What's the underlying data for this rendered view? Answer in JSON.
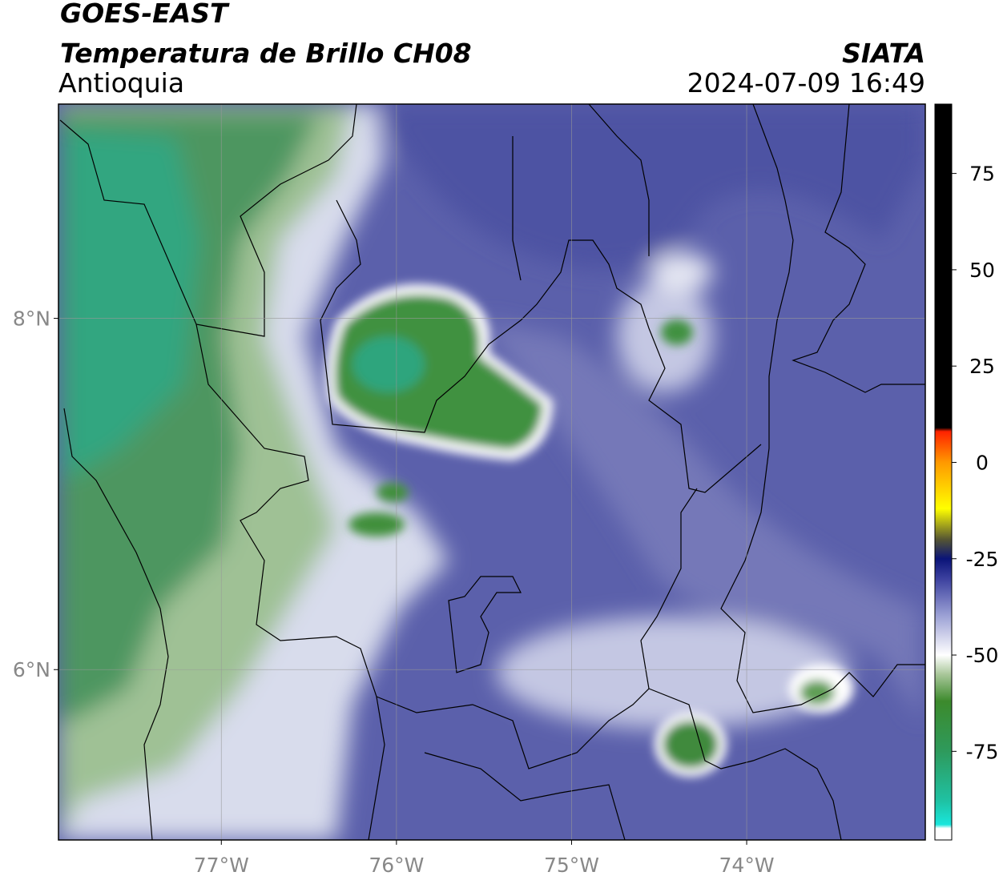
{
  "title": "GOES-EAST",
  "subtitle": "Temperatura de Brillo CH08",
  "region": "Antioquia",
  "source": "SIATA",
  "datetime": "2024-07-09 16:49",
  "map": {
    "xlim": [
      -77.93,
      -72.98
    ],
    "ylim": [
      5.03,
      9.22
    ],
    "xticks": [
      {
        "value": -77,
        "label": "77°W"
      },
      {
        "value": -76,
        "label": "76°W"
      },
      {
        "value": -75,
        "label": "75°W"
      },
      {
        "value": -74,
        "label": "74°W"
      }
    ],
    "yticks": [
      {
        "value": 8,
        "label": "8°N"
      },
      {
        "value": 6,
        "label": "6°N"
      }
    ],
    "grid": true
  },
  "colorbar": {
    "clim": [
      -98,
      93
    ],
    "ticks": [
      75,
      50,
      25,
      0,
      -25,
      -50,
      -75
    ],
    "colormap": [
      {
        "value": -98,
        "color": "#ffffff"
      },
      {
        "value": -95,
        "color": "#ffffff"
      },
      {
        "value": -94,
        "color": "#19e6dc"
      },
      {
        "value": -88,
        "color": "#1fc2a4"
      },
      {
        "value": -75,
        "color": "#2e9a5c"
      },
      {
        "value": -62,
        "color": "#3c8a2c"
      },
      {
        "value": -55,
        "color": "#a9c79a"
      },
      {
        "value": -50,
        "color": "#ffffff"
      },
      {
        "value": -40,
        "color": "#9ea3d6"
      },
      {
        "value": -30,
        "color": "#3a3f9e"
      },
      {
        "value": -25,
        "color": "#0a1478"
      },
      {
        "value": -20,
        "color": "#555533"
      },
      {
        "value": -12,
        "color": "#ffff00"
      },
      {
        "value": 0,
        "color": "#ff9900"
      },
      {
        "value": 8,
        "color": "#ff2200"
      },
      {
        "value": 9,
        "color": "#000000"
      },
      {
        "value": 93,
        "color": "#000000"
      }
    ]
  }
}
